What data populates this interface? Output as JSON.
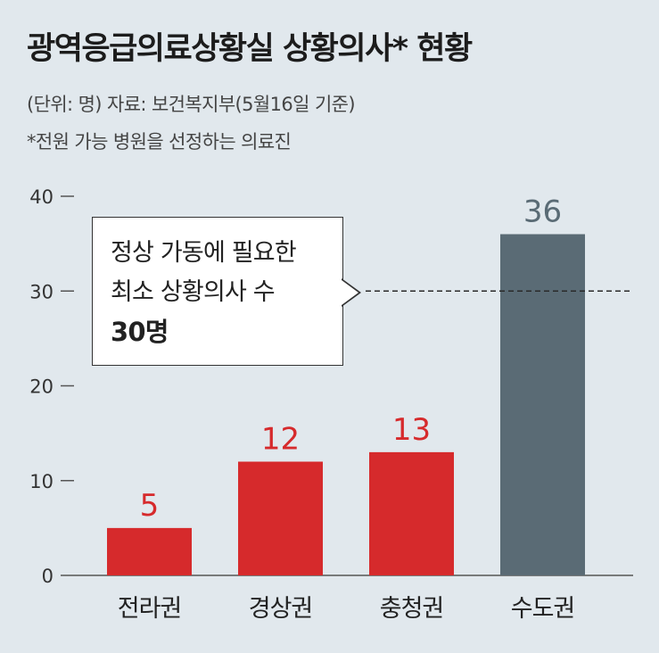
{
  "header": {
    "title": "광역응급의료상황실 상황의사* 현황",
    "source": "(단위: 명) 자료: 보건복지부(5월16일 기준)",
    "footnote": "*전원 가능 병원을 선정하는 의료진"
  },
  "callout": {
    "line1": "정상 가동에 필요한",
    "line2": "최소 상황의사 수",
    "line3": "30명"
  },
  "colors": {
    "non_capital": "#d62a2c",
    "capital": "#5a6b75",
    "background": "#e1e8ed"
  },
  "chart_data": {
    "type": "bar",
    "categories": [
      "전라권",
      "경상권",
      "충청권",
      "수도권"
    ],
    "values": [
      5,
      12,
      13,
      36
    ],
    "data_labels": [
      "5",
      "12",
      "13",
      "36"
    ],
    "bar_colors": [
      "#d62a2c",
      "#d62a2c",
      "#d62a2c",
      "#5a6b75"
    ],
    "y_ticks": [
      0,
      10,
      20,
      30,
      40
    ],
    "ylim": [
      0,
      40
    ],
    "reference_line": {
      "value": 30,
      "style": "dashed"
    },
    "grid": false
  }
}
